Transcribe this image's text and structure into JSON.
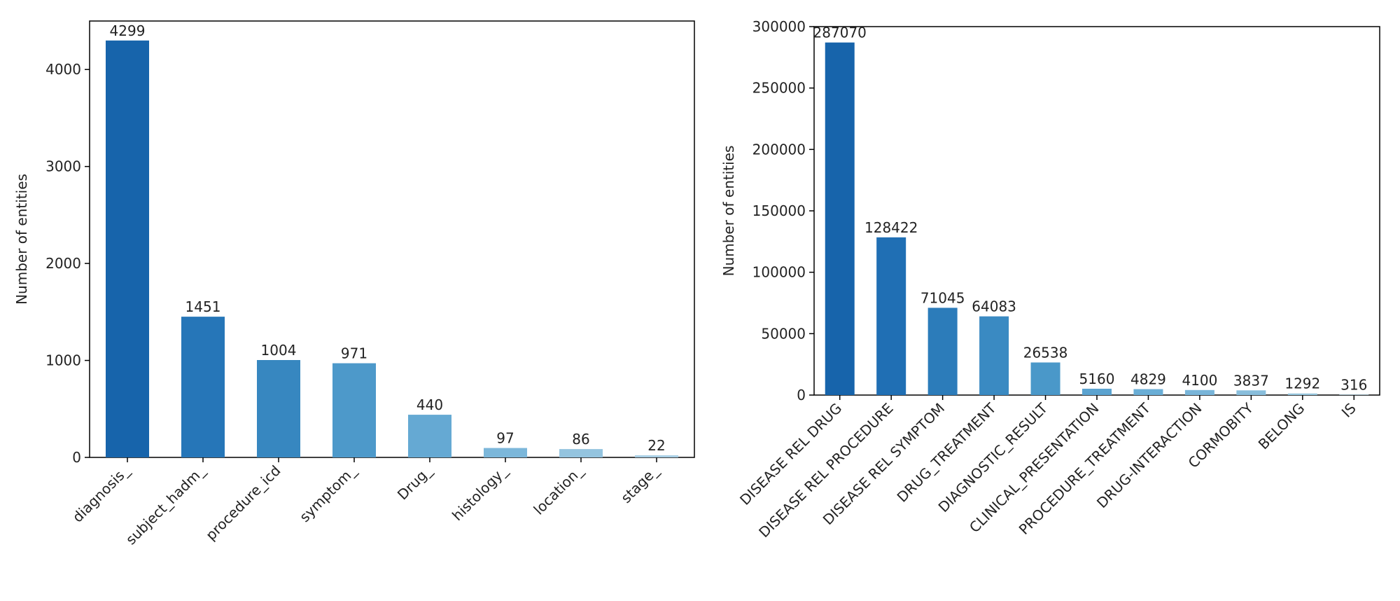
{
  "chart_data": [
    {
      "type": "bar",
      "ylabel": "Number of entities",
      "ylim": [
        0,
        4500
      ],
      "yticks": [
        0,
        1000,
        2000,
        3000,
        4000
      ],
      "categories": [
        "diagnosis_",
        "subject_hadm_",
        "procedure_icd",
        "symptom_",
        "Drug_",
        "histology_",
        "location_",
        "stage_"
      ],
      "values": [
        4299,
        1451,
        1004,
        971,
        440,
        97,
        86,
        22
      ],
      "colors": [
        "#1764ab",
        "#2676b8",
        "#3787c0",
        "#4d99ca",
        "#65a9d3",
        "#7cb7da",
        "#94c4df",
        "#a9cfe5"
      ],
      "grid": false
    },
    {
      "type": "bar",
      "ylabel": "Number of entities",
      "ylim": [
        0,
        300000
      ],
      "yticks": [
        0,
        50000,
        100000,
        150000,
        200000,
        250000,
        300000
      ],
      "categories": [
        "DISEASE REL DRUG",
        "DISEASE REL PROCEDURE",
        "DISEASE REL SYMPTOM",
        "DRUG_TREATMENT",
        "DIAGNOSTIC_RESULT",
        "CLINICAL_PRESENTATION",
        "PROCEDURE_TREATMENT",
        "DRUG-INTERACTION",
        "CORMOBITY",
        "BELONG",
        "IS"
      ],
      "values": [
        287070,
        128422,
        71045,
        64083,
        26538,
        5160,
        4829,
        4100,
        3837,
        1292,
        316
      ],
      "colors": [
        "#1764ab",
        "#206fb4",
        "#2c7cba",
        "#3a8ac2",
        "#4a98c9",
        "#5ba3d0",
        "#6aaed6",
        "#79b5d9",
        "#89bedc",
        "#98c7df",
        "#a6cee4"
      ],
      "grid": false
    }
  ]
}
